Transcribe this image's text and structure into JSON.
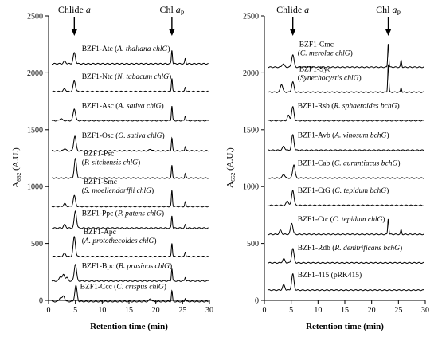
{
  "chart_data": [
    {
      "type": "line",
      "panel": "left",
      "xlabel": "Retention time (min)",
      "ylabel_base": "A",
      "ylabel_sub": "662",
      "ylabel_unit": " (A.U.)",
      "xlim": [
        0,
        30
      ],
      "ylim": [
        0,
        2500
      ],
      "xticks": [
        0,
        5,
        10,
        15,
        20,
        25,
        30
      ],
      "yticks": [
        0,
        500,
        1000,
        1500,
        2000,
        2500
      ],
      "markers": [
        {
          "label": "Chlide ",
          "label_it": "a",
          "x": 4.8
        },
        {
          "label": "Chl ",
          "label_it": "a",
          "label_sub": "P",
          "x": 23.0
        }
      ],
      "series": [
        {
          "id": "BZF1-Atc",
          "label1": "BZF1-Atc (",
          "label_it": "A. thaliana chlG",
          "label_end": ")",
          "baseline": 2080,
          "peaks": [
            [
              3.0,
              22
            ],
            [
              4.8,
              95
            ],
            [
              23.0,
              120
            ],
            [
              25.5,
              45
            ]
          ]
        },
        {
          "id": "BZF1-Ntc",
          "label1": "BZF1-Ntc (",
          "label_it": "N. tabacum chlG",
          "label_end": ")",
          "baseline": 1835,
          "peaks": [
            [
              3.0,
              25
            ],
            [
              4.8,
              95
            ],
            [
              23.0,
              120
            ],
            [
              25.5,
              40
            ]
          ]
        },
        {
          "id": "BZF1-Asc",
          "label1": "BZF1-Asc (",
          "label_it": "A. sativa chlG",
          "label_end": ")",
          "baseline": 1580,
          "peaks": [
            [
              2.3,
              20
            ],
            [
              4.8,
              105
            ],
            [
              23.0,
              130
            ],
            [
              25.5,
              45
            ]
          ]
        },
        {
          "id": "BZF1-Osc",
          "label1": "BZF1-Osc (",
          "label_it": "O. sativa chlG",
          "label_end": ")",
          "baseline": 1315,
          "peaks": [
            [
              3.0,
              20
            ],
            [
              4.9,
              130
            ],
            [
              19.0,
              15
            ],
            [
              23.0,
              110
            ],
            [
              25.5,
              40
            ]
          ]
        },
        {
          "id": "BZF1-Psc",
          "label1": "BZF1-Psc",
          "label2a": "(",
          "label2_it": "P. sitchensis chlG",
          "label2_end": ")",
          "baseline": 1075,
          "peaks": [
            [
              5.0,
              170
            ],
            [
              23.0,
              110
            ],
            [
              25.5,
              40
            ]
          ]
        },
        {
          "id": "BZF1-Smc",
          "label1": "BZF1-Smc",
          "label2a": "(",
          "label2_it": "S. moellendorffii chlG",
          "label2_end": ")",
          "baseline": 825,
          "peaks": [
            [
              3.0,
              25
            ],
            [
              4.8,
              95
            ],
            [
              23.0,
              140
            ],
            [
              25.5,
              40
            ]
          ]
        },
        {
          "id": "BZF1-Ppc",
          "label1": "BZF1-Ppc (",
          "label_it": "P. patens chlG",
          "label_end": ")",
          "baseline": 635,
          "peaks": [
            [
              3.0,
              30
            ],
            [
              5.0,
              150
            ],
            [
              23.0,
              110
            ],
            [
              25.5,
              30
            ]
          ]
        },
        {
          "id": "BZF1-Apc",
          "label1": "BZF1-Apc",
          "label2a": "(",
          "label2_it": "A. protothecoides chlG",
          "label2_end": ")",
          "baseline": 385,
          "peaks": [
            [
              3.0,
              30
            ],
            [
              4.8,
              175
            ],
            [
              23.0,
              120
            ],
            [
              25.5,
              40
            ]
          ]
        },
        {
          "id": "BZF1-Bpc",
          "label1": "BZF1-Bpc (",
          "label_it": "B. prasinos chlG",
          "label_end": ")",
          "baseline": 170,
          "peaks": [
            [
              2.2,
              40
            ],
            [
              2.8,
              55
            ],
            [
              3.4,
              30
            ],
            [
              5.0,
              150
            ],
            [
              23.0,
              110
            ],
            [
              25.5,
              35
            ]
          ]
        },
        {
          "id": "BZF1-Ccc",
          "label1": "BZF1-Ccc (",
          "label_it": "C. crispus chlG",
          "label_end": ")",
          "baseline": -10,
          "peaks": [
            [
              2.2,
              35
            ],
            [
              2.8,
              50
            ],
            [
              5.1,
              140
            ],
            [
              19.0,
              25
            ],
            [
              23.0,
              95
            ],
            [
              25.5,
              30
            ]
          ]
        }
      ]
    },
    {
      "type": "line",
      "panel": "right",
      "xlabel": "Retention time (min)",
      "ylabel_base": "A",
      "ylabel_sub": "662",
      "ylabel_unit": " (A.U.)",
      "xlim": [
        0,
        30
      ],
      "ylim": [
        0,
        2500
      ],
      "xticks": [
        0,
        5,
        10,
        15,
        20,
        25,
        30
      ],
      "yticks": [
        0,
        500,
        1000,
        1500,
        2000,
        2500
      ],
      "markers": [
        {
          "label": "Chlide ",
          "label_it": "a",
          "x": 5.3
        },
        {
          "label": "Chl ",
          "label_it": "a",
          "label_sub": "P",
          "x": 23.1
        }
      ],
      "series": [
        {
          "id": "BZF1-Cmc",
          "label1": "BZF1-Cmc",
          "label2a": "(",
          "label2_it": "C. merolae chlG",
          "label2_end": ")",
          "baseline": 2050,
          "peaks": [
            [
              3.5,
              30
            ],
            [
              5.3,
              110
            ],
            [
              23.1,
              210
            ],
            [
              25.5,
              60
            ]
          ]
        },
        {
          "id": "BZF1-Syc",
          "label1": "BZF1-Syc",
          "label2a": "(",
          "label2_it": "Synechocystis chlG",
          "label2_end": ")",
          "baseline": 1830,
          "peaks": [
            [
              3.2,
              70
            ],
            [
              5.3,
              90
            ],
            [
              23.1,
              250
            ],
            [
              25.5,
              40
            ]
          ]
        },
        {
          "id": "BZF1-Rsb",
          "label1": "BZF1-Rsb (",
          "label_it": "R. sphaeroides bchG",
          "label_end": ")",
          "baseline": 1580,
          "peaks": [
            [
              4.5,
              45
            ],
            [
              5.3,
              120
            ]
          ]
        },
        {
          "id": "BZF1-Avb",
          "label1": "BZF1-Avb (",
          "label_it": "A. vinosum bchG",
          "label_end": ")",
          "baseline": 1320,
          "peaks": [
            [
              3.6,
              35
            ],
            [
              5.3,
              135
            ]
          ]
        },
        {
          "id": "BZF1-Cab",
          "label1": "BZF1-Cab (",
          "label_it": "C. aurantiacus bchG",
          "label_end": ")",
          "baseline": 1075,
          "peaks": [
            [
              3.6,
              35
            ],
            [
              5.5,
              120
            ]
          ]
        },
        {
          "id": "BZF1-CtG",
          "label1": "BZF1-CtG (",
          "label_it": "C. tepidum bchG",
          "label_end": ")",
          "baseline": 835,
          "peaks": [
            [
              4.3,
              40
            ],
            [
              5.3,
              135
            ]
          ]
        },
        {
          "id": "BZF1-Ctc",
          "label1": "BZF1-Ctc (",
          "label_it": "C. tepidum chlG",
          "label_end": ")",
          "baseline": 580,
          "peaks": [
            [
              3.0,
              35
            ],
            [
              5.1,
              100
            ],
            [
              23.1,
              140
            ],
            [
              25.5,
              40
            ]
          ]
        },
        {
          "id": "BZF1-Rdb",
          "label1": "BZF1-Rdb (",
          "label_it": "R. denitrificans bchG",
          "label_end": ")",
          "baseline": 330,
          "peaks": [
            [
              3.6,
              35
            ],
            [
              5.3,
              125
            ]
          ]
        },
        {
          "id": "BZF1-415",
          "label1": "BZF1-415 (pRK415)",
          "baseline": 90,
          "peaks": [
            [
              3.6,
              45
            ],
            [
              5.3,
              140
            ]
          ]
        }
      ]
    }
  ]
}
